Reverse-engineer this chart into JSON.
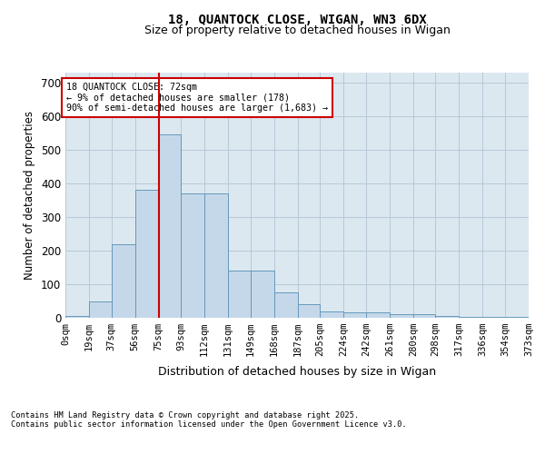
{
  "title_line1": "18, QUANTOCK CLOSE, WIGAN, WN3 6DX",
  "title_line2": "Size of property relative to detached houses in Wigan",
  "xlabel": "Distribution of detached houses by size in Wigan",
  "ylabel": "Number of detached properties",
  "annotation_line1": "18 QUANTOCK CLOSE: 72sqm",
  "annotation_line2": "← 9% of detached houses are smaller (178)",
  "annotation_line3": "90% of semi-detached houses are larger (1,683) →",
  "footnote1": "Contains HM Land Registry data © Crown copyright and database right 2025.",
  "footnote2": "Contains public sector information licensed under the Open Government Licence v3.0.",
  "bar_color": "#c5d8ea",
  "bar_edge_color": "#6699bb",
  "vline_color": "#cc0000",
  "annotation_box_edge_color": "#cc0000",
  "grid_color": "#b8c8d8",
  "background_color": "#dce8f0",
  "bins": [
    0,
    19,
    37,
    56,
    75,
    93,
    112,
    131,
    149,
    168,
    187,
    205,
    224,
    242,
    261,
    280,
    298,
    317,
    336,
    354,
    373
  ],
  "bin_labels": [
    "0sqm",
    "19sqm",
    "37sqm",
    "56sqm",
    "75sqm",
    "93sqm",
    "112sqm",
    "131sqm",
    "149sqm",
    "168sqm",
    "187sqm",
    "205sqm",
    "224sqm",
    "242sqm",
    "261sqm",
    "280sqm",
    "298sqm",
    "317sqm",
    "336sqm",
    "354sqm",
    "373sqm"
  ],
  "counts": [
    5,
    50,
    220,
    380,
    545,
    370,
    370,
    140,
    140,
    75,
    40,
    20,
    15,
    15,
    10,
    10,
    5,
    3,
    2,
    2
  ],
  "ylim": [
    0,
    730
  ],
  "yticks": [
    0,
    100,
    200,
    300,
    400,
    500,
    600,
    700
  ],
  "vline_x": 75
}
